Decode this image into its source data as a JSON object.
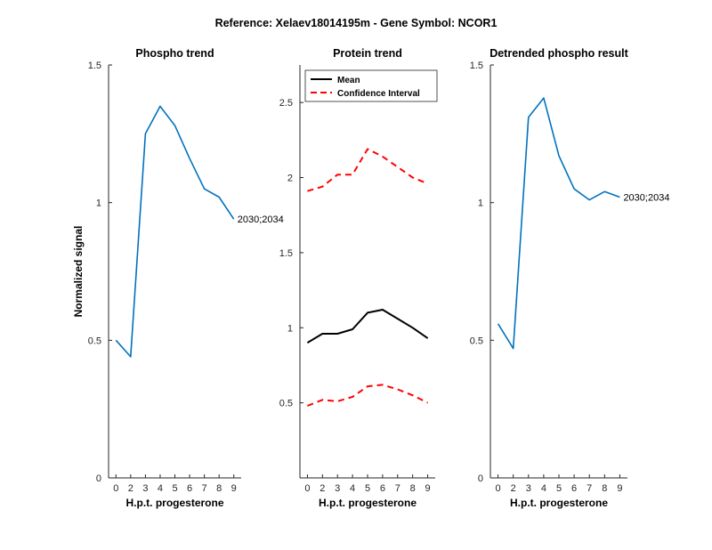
{
  "figure": {
    "suptitle": "Reference:  Xelaev18014195m - Gene Symbol:  NCOR1"
  },
  "chart_data": [
    {
      "type": "line",
      "title": "Phospho trend",
      "xlabel": "H.p.t. progesterone",
      "ylabel": "Normalized signal",
      "x": [
        1,
        2,
        3,
        4,
        5,
        6,
        7,
        8,
        9
      ],
      "x_ticks": [
        "0",
        "2",
        "3",
        "4",
        "5",
        "6",
        "7",
        "8",
        "9"
      ],
      "ylim": [
        0,
        1.5
      ],
      "y_ticks": [
        0,
        0.5,
        1,
        1.5
      ],
      "y_tick_labels": [
        "0",
        "0.5",
        "1",
        "1.5"
      ],
      "series": [
        {
          "values": [
            0.5,
            0.44,
            1.25,
            1.35,
            1.28,
            1.16,
            1.05,
            1.02,
            0.94
          ],
          "color": "#0072BD",
          "style": "solid"
        }
      ],
      "annotations": [
        {
          "text": "2030;2034",
          "x": 9,
          "y": 0.94
        }
      ]
    },
    {
      "type": "line",
      "title": "Protein trend",
      "xlabel": "H.p.t. progesterone",
      "ylabel": "",
      "x": [
        1,
        2,
        3,
        4,
        5,
        6,
        7,
        8,
        9
      ],
      "x_ticks": [
        "0",
        "2",
        "3",
        "4",
        "5",
        "6",
        "7",
        "8",
        "9"
      ],
      "ylim": [
        0,
        2.75
      ],
      "y_ticks": [
        0.5,
        1,
        1.5,
        2,
        2.5
      ],
      "y_tick_labels": [
        "0.5",
        "1",
        "1.5",
        "2",
        "2.5"
      ],
      "legend": {
        "placement": "top-left",
        "entries": [
          "Mean",
          "Confidence Interval"
        ]
      },
      "series": [
        {
          "name": "Mean",
          "values": [
            0.9,
            0.96,
            0.96,
            0.99,
            1.1,
            1.12,
            1.06,
            1.0,
            0.93
          ],
          "color": "#000000",
          "style": "solid"
        },
        {
          "name": "Confidence Interval",
          "values": [
            1.91,
            1.94,
            2.02,
            2.02,
            2.19,
            2.14,
            2.07,
            2.0,
            1.96
          ],
          "color": "#FF0000",
          "style": "dashed"
        },
        {
          "name": "Confidence Interval",
          "values": [
            0.48,
            0.52,
            0.51,
            0.54,
            0.61,
            0.62,
            0.59,
            0.55,
            0.5
          ],
          "color": "#FF0000",
          "style": "dashed"
        }
      ]
    },
    {
      "type": "line",
      "title": "Detrended phospho result",
      "xlabel": "H.p.t. progesterone",
      "ylabel": "",
      "x": [
        1,
        2,
        3,
        4,
        5,
        6,
        7,
        8,
        9
      ],
      "x_ticks": [
        "0",
        "2",
        "3",
        "4",
        "5",
        "6",
        "7",
        "8",
        "9"
      ],
      "ylim": [
        0,
        1.5
      ],
      "y_ticks": [
        0,
        0.5,
        1,
        1.5
      ],
      "y_tick_labels": [
        "0",
        "0.5",
        "1",
        "1.5"
      ],
      "series": [
        {
          "values": [
            0.56,
            0.47,
            1.31,
            1.38,
            1.17,
            1.05,
            1.01,
            1.04,
            1.02
          ],
          "color": "#0072BD",
          "style": "solid"
        }
      ],
      "annotations": [
        {
          "text": "2030;2034",
          "x": 9,
          "y": 1.02
        }
      ]
    }
  ]
}
